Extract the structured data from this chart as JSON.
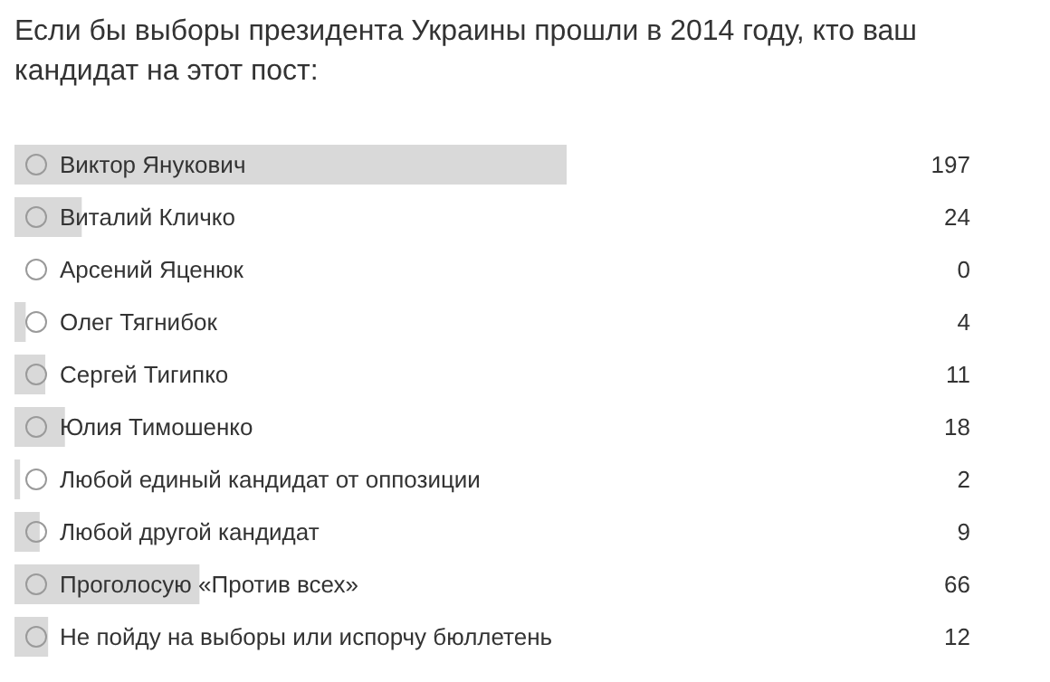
{
  "chart_data": {
    "type": "bar",
    "orientation": "horizontal",
    "title": "Если бы выборы президента Украины прошли в 2014 году, кто ваш кандидат на этот пост:",
    "categories": [
      "Виктор Янукович",
      "Виталий Кличко",
      "Арсений Яценюк",
      "Олег Тягнибок",
      "Сергей Тигипко",
      "Юлия Тимошенко",
      "Любой единый кандидат от оппозиции",
      "Любой другой кандидат",
      "Проголосую «Против всех»",
      "Не пойду на выборы или испорчу бюллетень"
    ],
    "values": [
      197,
      24,
      0,
      4,
      11,
      18,
      2,
      9,
      66,
      12
    ],
    "color": "#d9d9d9",
    "xlim": [
      0,
      197
    ],
    "data_labels": true
  }
}
